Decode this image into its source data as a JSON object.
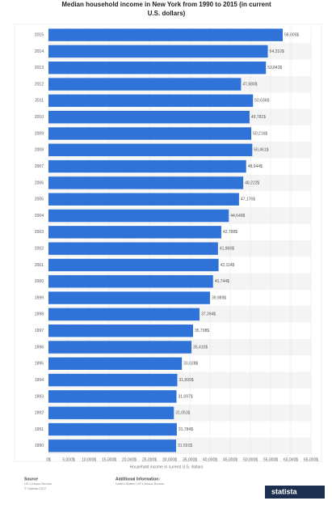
{
  "chart_data": {
    "type": "bar",
    "orientation": "horizontal",
    "title": "Median household income in New York from 1990 to 2015 (in current U.S. dollars)",
    "title_lines": [
      "Median household income in New York from 1990 to 2015 (in current",
      "U.S. dollars)"
    ],
    "categories": [
      "2015",
      "2014",
      "2013",
      "2012",
      "2011",
      "2010",
      "2009",
      "2008",
      "2007",
      "2006",
      "2005",
      "2004",
      "2003",
      "2002",
      "2001",
      "2000",
      "1999",
      "1998",
      "1997",
      "1996",
      "1995",
      "1994",
      "1993",
      "1992",
      "1991",
      "1990"
    ],
    "values": [
      58005,
      54310,
      53843,
      47680,
      50636,
      49781,
      50216,
      50461,
      48944,
      48222,
      47176,
      44649,
      42788,
      41966,
      42114,
      40744,
      39989,
      37394,
      35798,
      35410,
      33028,
      31899,
      31697,
      31051,
      31784,
      31591
    ],
    "value_labels": [
      "58,005$",
      "54,310$",
      "53,843$",
      "47,680$",
      "50,636$",
      "49,781$",
      "50,216$",
      "50,461$",
      "48,944$",
      "48,222$",
      "47,176$",
      "44,649$",
      "42,788$",
      "41,966$",
      "42,114$",
      "40,744$",
      "39,989$",
      "37,394$",
      "35,798$",
      "35,410$",
      "33,028$",
      "31,899$",
      "31,697$",
      "31,051$",
      "31,784$",
      "31,591$"
    ],
    "color": "#2f73d8",
    "xlim": [
      0,
      65000
    ],
    "xticks": [
      {
        "value": 0,
        "label": "0$"
      },
      {
        "value": 5000,
        "label": "5,000$"
      },
      {
        "value": 10000,
        "label": "10,000$"
      },
      {
        "value": 15000,
        "label": "15,000$"
      },
      {
        "value": 20000,
        "label": "20,000$"
      },
      {
        "value": 25000,
        "label": "25,000$"
      },
      {
        "value": 30000,
        "label": "30,000$"
      },
      {
        "value": 35000,
        "label": "35,000$"
      },
      {
        "value": 40000,
        "label": "40,000$"
      },
      {
        "value": 45000,
        "label": "45,000$"
      },
      {
        "value": 50000,
        "label": "50,000$"
      },
      {
        "value": 55000,
        "label": "55,000$"
      },
      {
        "value": 60000,
        "label": "60,000$"
      },
      {
        "value": 65000,
        "label": "65,000$"
      }
    ],
    "xlabel": "Household income in current U.S. dollars",
    "grid": true
  },
  "footer": {
    "source_heading": "Source",
    "source_lines": [
      "US Census Bureau",
      "© Statista 2017"
    ],
    "info_heading": "Additional Information:",
    "info_lines": [
      "United States; US Census Bureau"
    ],
    "logo": "statista"
  }
}
